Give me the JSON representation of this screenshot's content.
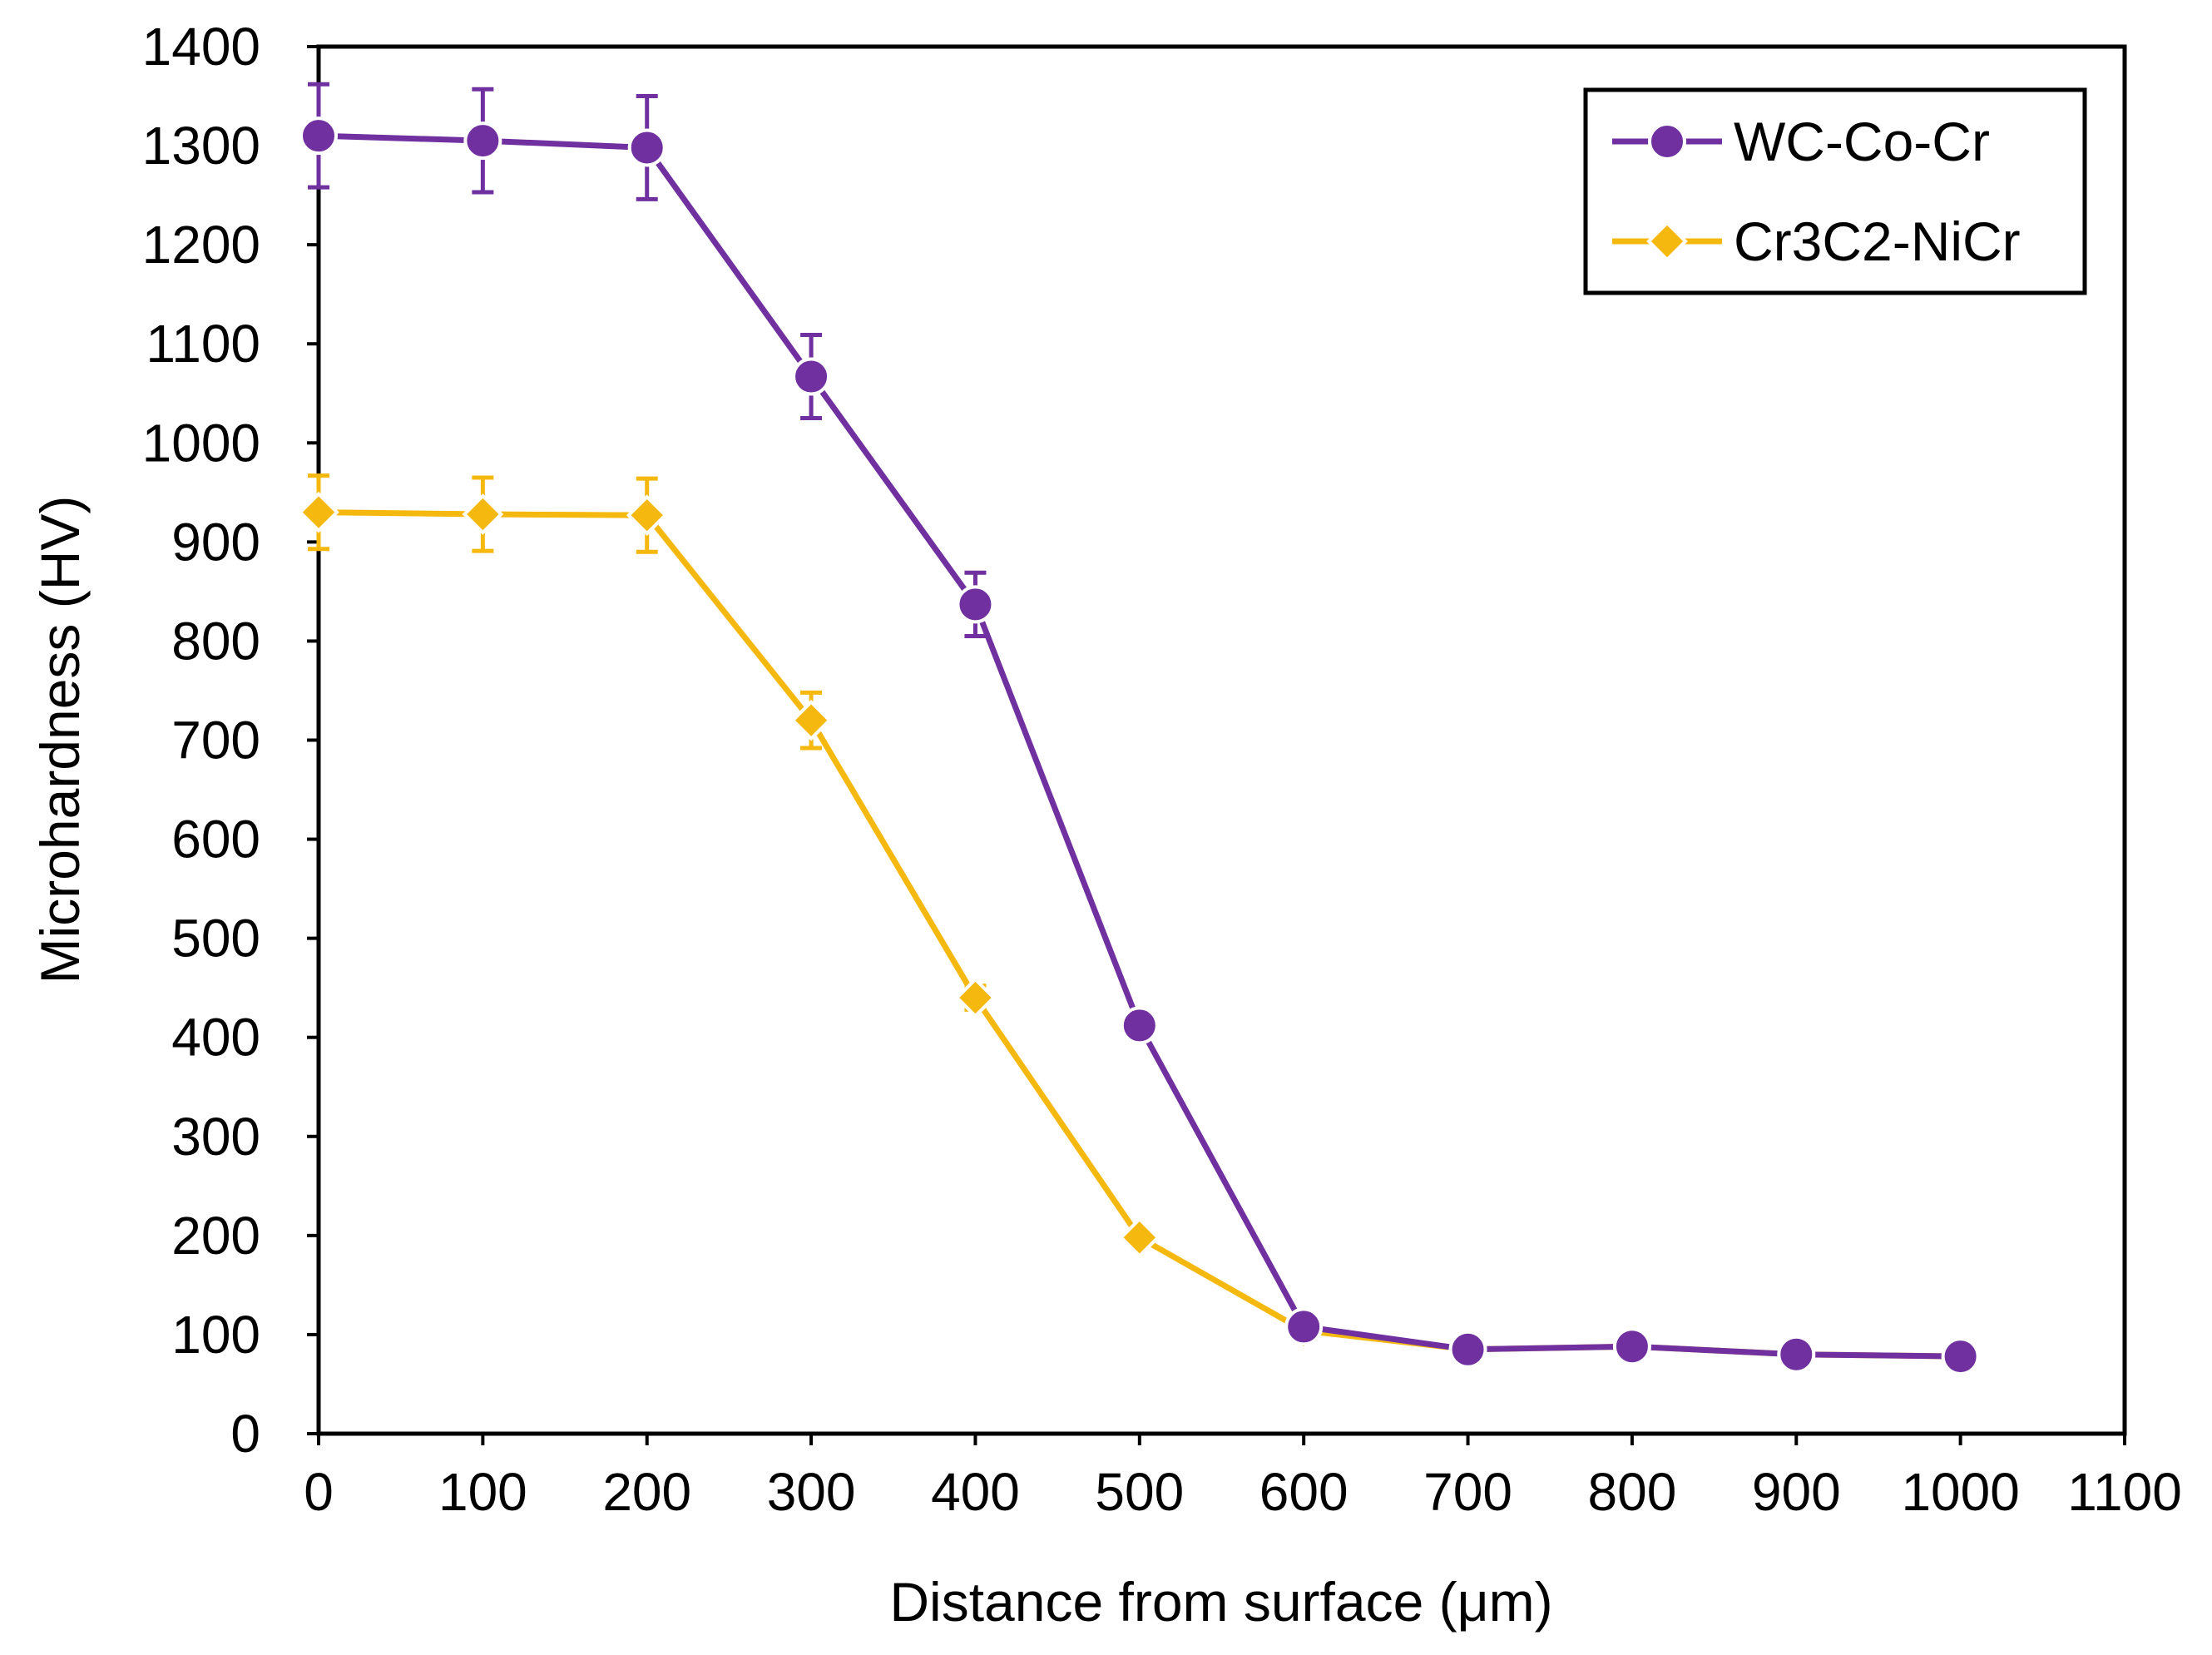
{
  "chart_data": {
    "type": "line",
    "title": "",
    "xlabel": "Distance from surface (μm)",
    "ylabel": "Microhardness (HV)",
    "xlim": [
      0,
      1100
    ],
    "ylim": [
      0,
      1400
    ],
    "x_ticks": [
      0,
      100,
      200,
      300,
      400,
      500,
      600,
      700,
      800,
      900,
      1000,
      1100
    ],
    "y_ticks": [
      0,
      100,
      200,
      300,
      400,
      500,
      600,
      700,
      800,
      900,
      1000,
      1100,
      1200,
      1300,
      1400
    ],
    "grid": false,
    "legend_position": "top-right",
    "series": [
      {
        "name": "WC-Co-Cr",
        "color": "#7030a0",
        "marker": "circle",
        "x": [
          0,
          100,
          200,
          300,
          400,
          500,
          600,
          700,
          800,
          900,
          1000
        ],
        "values": [
          1310,
          1305,
          1298,
          1067,
          837,
          412,
          108,
          85,
          88,
          80,
          78
        ],
        "errors": [
          52,
          52,
          52,
          42,
          32,
          0,
          0,
          0,
          0,
          0,
          0
        ]
      },
      {
        "name": "Cr3C2-NiCr",
        "color": "#f5b80f",
        "marker": "diamond",
        "x": [
          0,
          100,
          200,
          300,
          400,
          500,
          600,
          700,
          800,
          900,
          1000
        ],
        "values": [
          930,
          928,
          927,
          720,
          440,
          198,
          104,
          85,
          88,
          80,
          78
        ],
        "errors": [
          37,
          37,
          37,
          28,
          12,
          0,
          0,
          0,
          0,
          0,
          0
        ]
      }
    ]
  }
}
